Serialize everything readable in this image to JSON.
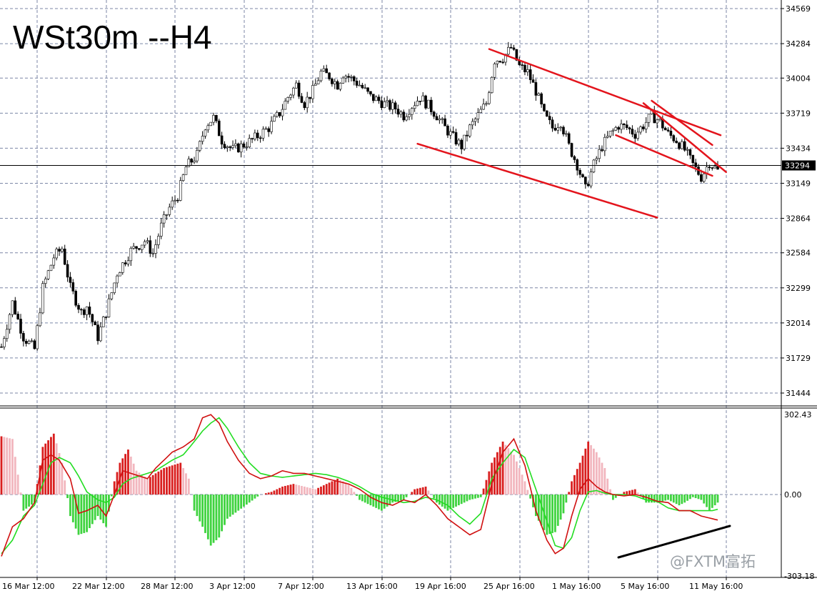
{
  "chart_title": "WSt30m --H4",
  "watermark": "@FXTM富拓",
  "colors": {
    "background": "#ffffff",
    "grid": "#7b86a6",
    "candle": "#000000",
    "trendline": "#e3141c",
    "macd_pos_strong": "#d91e1e",
    "macd_pos_weak": "#f2b6be",
    "macd_neg": "#3fd33f",
    "signal_fast": "#d01010",
    "signal_slow": "#22dd22",
    "divergence_line": "#000000"
  },
  "chart_data": [
    {
      "type": "candlestick",
      "symbol": "WSt30m",
      "timeframe": "H4",
      "price_ticks": [
        "34569",
        "34284",
        "34004",
        "33719",
        "33434",
        "33149",
        "32864",
        "32584",
        "32299",
        "32014",
        "31729",
        "31444"
      ],
      "current_price": "33294",
      "time_labels": [
        "16 Mar 12:00",
        "22 Mar 12:00",
        "28 Mar 12:00",
        "3 Apr 12:00",
        "7 Apr 12:00",
        "13 Apr 16:00",
        "19 Apr 16:00",
        "25 Apr 16:00",
        "1 May 16:00",
        "5 May 16:00",
        "11 May 16:00"
      ],
      "ylim": [
        31300,
        34600
      ],
      "close_path": [
        [
          0,
          31820
        ],
        [
          4,
          32180
        ],
        [
          8,
          31900
        ],
        [
          12,
          31800
        ],
        [
          15,
          32300
        ],
        [
          19,
          32550
        ],
        [
          22,
          32620
        ],
        [
          25,
          32300
        ],
        [
          29,
          32100
        ],
        [
          31,
          32150
        ],
        [
          35,
          31900
        ],
        [
          38,
          32100
        ],
        [
          42,
          32420
        ],
        [
          47,
          32600
        ],
        [
          52,
          32680
        ],
        [
          55,
          32580
        ],
        [
          58,
          32800
        ],
        [
          61,
          32950
        ],
        [
          64,
          33050
        ],
        [
          67,
          33280
        ],
        [
          71,
          33380
        ],
        [
          74,
          33620
        ],
        [
          77,
          33680
        ],
        [
          80,
          33500
        ],
        [
          84,
          33420
        ],
        [
          87,
          33450
        ],
        [
          91,
          33500
        ],
        [
          94,
          33550
        ],
        [
          97,
          33600
        ],
        [
          101,
          33720
        ],
        [
          104,
          33850
        ],
        [
          107,
          33950
        ],
        [
          110,
          33800
        ],
        [
          113,
          33900
        ],
        [
          116,
          34050
        ],
        [
          119,
          34020
        ],
        [
          122,
          33950
        ],
        [
          124,
          34040
        ],
        [
          127,
          34000
        ],
        [
          130,
          33950
        ],
        [
          134,
          33850
        ],
        [
          137,
          33820
        ],
        [
          140,
          33780
        ],
        [
          143,
          33760
        ],
        [
          146,
          33700
        ],
        [
          149,
          33780
        ],
        [
          152,
          33850
        ],
        [
          155,
          33780
        ],
        [
          158,
          33700
        ],
        [
          161,
          33600
        ],
        [
          164,
          33520
        ],
        [
          167,
          33450
        ],
        [
          170,
          33600
        ],
        [
          173,
          33700
        ],
        [
          176,
          33800
        ],
        [
          179,
          34150
        ],
        [
          182,
          34170
        ],
        [
          185,
          34250
        ],
        [
          188,
          34100
        ],
        [
          191,
          34050
        ],
        [
          194,
          33900
        ],
        [
          197,
          33700
        ],
        [
          200,
          33600
        ],
        [
          203,
          33650
        ],
        [
          206,
          33450
        ],
        [
          209,
          33300
        ],
        [
          212,
          33100
        ],
        [
          215,
          33300
        ],
        [
          218,
          33450
        ],
        [
          221,
          33550
        ],
        [
          224,
          33620
        ],
        [
          227,
          33600
        ],
        [
          230,
          33550
        ],
        [
          233,
          33620
        ],
        [
          236,
          33700
        ],
        [
          239,
          33650
        ],
        [
          242,
          33550
        ],
        [
          245,
          33500
        ],
        [
          248,
          33420
        ],
        [
          251,
          33300
        ],
        [
          254,
          33200
        ],
        [
          257,
          33320
        ],
        [
          260,
          33250
        ]
      ]
    },
    {
      "type": "macd",
      "ylim": [
        -303.18,
        302.43
      ],
      "level_labels": [
        "302.43",
        "0.00",
        "-303.18"
      ],
      "histogram_path": [
        [
          0,
          220
        ],
        [
          4,
          210
        ],
        [
          8,
          -60
        ],
        [
          12,
          -30
        ],
        [
          15,
          180
        ],
        [
          19,
          230
        ],
        [
          22,
          120
        ],
        [
          25,
          -80
        ],
        [
          28,
          -150
        ],
        [
          31,
          -140
        ],
        [
          35,
          -80
        ],
        [
          38,
          -120
        ],
        [
          41,
          50
        ],
        [
          43,
          120
        ],
        [
          46,
          170
        ],
        [
          49,
          90
        ],
        [
          53,
          60
        ],
        [
          56,
          80
        ],
        [
          59,
          100
        ],
        [
          62,
          110
        ],
        [
          65,
          120
        ],
        [
          68,
          60
        ],
        [
          70,
          -60
        ],
        [
          73,
          -120
        ],
        [
          76,
          -190
        ],
        [
          79,
          -160
        ],
        [
          82,
          -90
        ],
        [
          86,
          -60
        ],
        [
          90,
          -30
        ],
        [
          94,
          0
        ],
        [
          98,
          10
        ],
        [
          102,
          30
        ],
        [
          106,
          40
        ],
        [
          110,
          30
        ],
        [
          114,
          20
        ],
        [
          118,
          40
        ],
        [
          122,
          60
        ],
        [
          126,
          40
        ],
        [
          130,
          -20
        ],
        [
          134,
          -40
        ],
        [
          138,
          -60
        ],
        [
          142,
          -30
        ],
        [
          146,
          -20
        ],
        [
          150,
          20
        ],
        [
          154,
          30
        ],
        [
          158,
          -30
        ],
        [
          162,
          -60
        ],
        [
          166,
          -40
        ],
        [
          170,
          -20
        ],
        [
          174,
          -10
        ],
        [
          178,
          120
        ],
        [
          182,
          200
        ],
        [
          186,
          150
        ],
        [
          190,
          50
        ],
        [
          194,
          -80
        ],
        [
          198,
          -150
        ],
        [
          201,
          -140
        ],
        [
          204,
          -70
        ],
        [
          207,
          50
        ],
        [
          210,
          120
        ],
        [
          213,
          200
        ],
        [
          216,
          160
        ],
        [
          219,
          100
        ],
        [
          222,
          -20
        ],
        [
          226,
          10
        ],
        [
          230,
          20
        ],
        [
          234,
          -30
        ],
        [
          238,
          -30
        ],
        [
          242,
          -20
        ],
        [
          246,
          -40
        ],
        [
          248,
          -30
        ],
        [
          251,
          -10
        ],
        [
          254,
          -20
        ],
        [
          257,
          -60
        ],
        [
          260,
          -30
        ]
      ],
      "fast_path": [
        [
          0,
          -230
        ],
        [
          4,
          -120
        ],
        [
          8,
          -90
        ],
        [
          12,
          -30
        ],
        [
          15,
          130
        ],
        [
          18,
          150
        ],
        [
          21,
          130
        ],
        [
          25,
          60
        ],
        [
          28,
          -70
        ],
        [
          31,
          -60
        ],
        [
          35,
          -40
        ],
        [
          38,
          -80
        ],
        [
          41,
          0
        ],
        [
          44,
          90
        ],
        [
          47,
          80
        ],
        [
          50,
          70
        ],
        [
          53,
          60
        ],
        [
          56,
          100
        ],
        [
          59,
          130
        ],
        [
          62,
          160
        ],
        [
          66,
          180
        ],
        [
          70,
          210
        ],
        [
          73,
          290
        ],
        [
          76,
          302
        ],
        [
          79,
          270
        ],
        [
          82,
          200
        ],
        [
          86,
          130
        ],
        [
          90,
          80
        ],
        [
          94,
          60
        ],
        [
          98,
          70
        ],
        [
          102,
          90
        ],
        [
          106,
          80
        ],
        [
          110,
          80
        ],
        [
          114,
          70
        ],
        [
          118,
          60
        ],
        [
          122,
          50
        ],
        [
          126,
          40
        ],
        [
          130,
          20
        ],
        [
          134,
          -10
        ],
        [
          138,
          -30
        ],
        [
          142,
          -40
        ],
        [
          146,
          -20
        ],
        [
          150,
          -30
        ],
        [
          154,
          0
        ],
        [
          158,
          -40
        ],
        [
          162,
          -90
        ],
        [
          166,
          -120
        ],
        [
          170,
          -150
        ],
        [
          174,
          -130
        ],
        [
          178,
          40
        ],
        [
          182,
          160
        ],
        [
          186,
          210
        ],
        [
          190,
          110
        ],
        [
          194,
          -60
        ],
        [
          198,
          -170
        ],
        [
          201,
          -220
        ],
        [
          204,
          -200
        ],
        [
          207,
          -80
        ],
        [
          210,
          20
        ],
        [
          213,
          60
        ],
        [
          216,
          30
        ],
        [
          219,
          10
        ],
        [
          222,
          0
        ],
        [
          226,
          -5
        ],
        [
          230,
          0
        ],
        [
          234,
          -10
        ],
        [
          238,
          -25
        ],
        [
          242,
          -30
        ],
        [
          246,
          -60
        ],
        [
          250,
          -60
        ],
        [
          254,
          -80
        ],
        [
          258,
          -90
        ],
        [
          260,
          -95
        ]
      ],
      "slow_path": [
        [
          0,
          -220
        ],
        [
          4,
          -170
        ],
        [
          8,
          -80
        ],
        [
          12,
          -40
        ],
        [
          15,
          40
        ],
        [
          18,
          120
        ],
        [
          21,
          140
        ],
        [
          25,
          120
        ],
        [
          28,
          70
        ],
        [
          31,
          10
        ],
        [
          35,
          -20
        ],
        [
          38,
          -30
        ],
        [
          41,
          -10
        ],
        [
          44,
          40
        ],
        [
          47,
          60
        ],
        [
          50,
          70
        ],
        [
          53,
          80
        ],
        [
          56,
          90
        ],
        [
          59,
          110
        ],
        [
          62,
          130
        ],
        [
          66,
          150
        ],
        [
          70,
          200
        ],
        [
          73,
          240
        ],
        [
          76,
          270
        ],
        [
          79,
          290
        ],
        [
          82,
          250
        ],
        [
          86,
          180
        ],
        [
          90,
          120
        ],
        [
          94,
          80
        ],
        [
          98,
          70
        ],
        [
          102,
          65
        ],
        [
          106,
          70
        ],
        [
          110,
          75
        ],
        [
          114,
          80
        ],
        [
          118,
          75
        ],
        [
          122,
          65
        ],
        [
          126,
          50
        ],
        [
          130,
          30
        ],
        [
          134,
          5
        ],
        [
          138,
          -10
        ],
        [
          142,
          -20
        ],
        [
          146,
          -30
        ],
        [
          150,
          -25
        ],
        [
          154,
          -10
        ],
        [
          158,
          -20
        ],
        [
          162,
          -40
        ],
        [
          166,
          -80
        ],
        [
          170,
          -110
        ],
        [
          174,
          -70
        ],
        [
          178,
          60
        ],
        [
          182,
          120
        ],
        [
          186,
          170
        ],
        [
          190,
          140
        ],
        [
          194,
          20
        ],
        [
          198,
          -100
        ],
        [
          201,
          -190
        ],
        [
          204,
          -200
        ],
        [
          207,
          -160
        ],
        [
          210,
          -60
        ],
        [
          213,
          10
        ],
        [
          216,
          15
        ],
        [
          219,
          5
        ],
        [
          222,
          0
        ],
        [
          226,
          0
        ],
        [
          230,
          -5
        ],
        [
          234,
          -20
        ],
        [
          238,
          -25
        ],
        [
          242,
          -50
        ],
        [
          246,
          -60
        ],
        [
          250,
          -60
        ],
        [
          254,
          -60
        ],
        [
          258,
          -60
        ],
        [
          260,
          -55
        ]
      ]
    }
  ]
}
